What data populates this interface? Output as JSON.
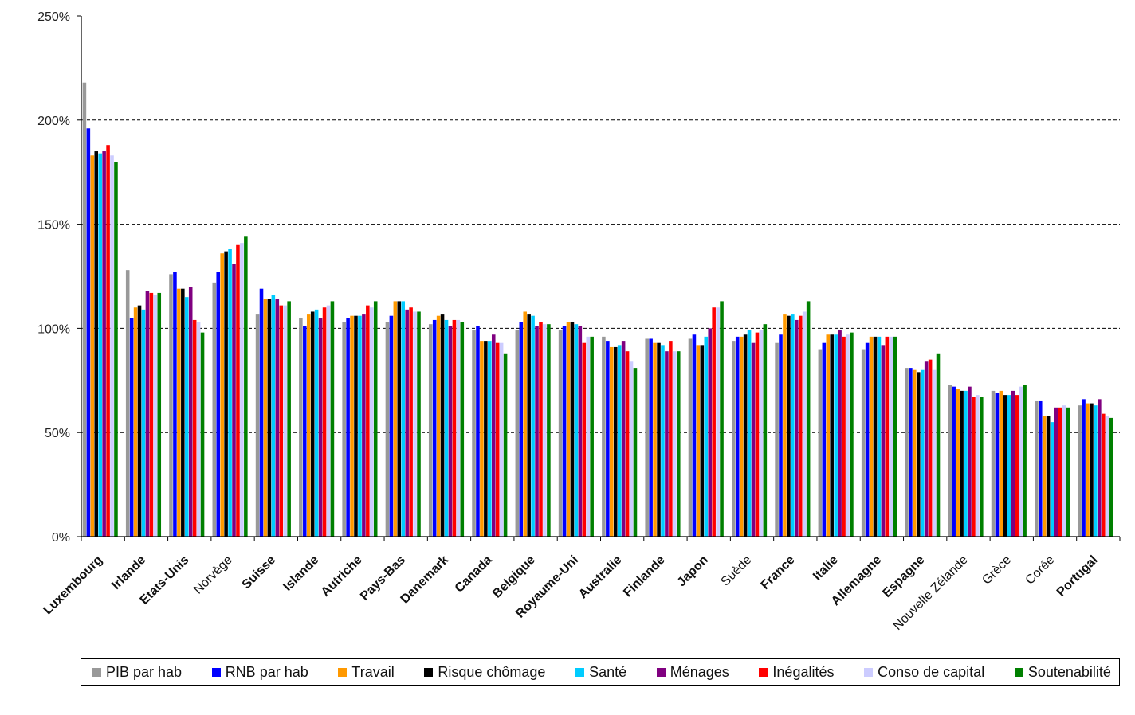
{
  "chart_data": {
    "type": "bar",
    "title": "",
    "xlabel": "",
    "ylabel": "",
    "ylim": [
      0,
      250
    ],
    "yticks": [
      0,
      50,
      100,
      150,
      200,
      250
    ],
    "ytick_labels": [
      "0%",
      "50%",
      "100%",
      "150%",
      "200%",
      "250%"
    ],
    "grid": "horizontal dashed at 100%, 150%, 200%",
    "legend_position": "bottom",
    "categories": [
      "Luxembourg",
      "Irlande",
      "Etats-Unis",
      "Norvège",
      "Suisse",
      "Islande",
      "Autriche",
      "Pays-Bas",
      "Danemark",
      "Canada",
      "Belgique",
      "Royaume-Uni",
      "Australie",
      "Finlande",
      "Japon",
      "Suède",
      "France",
      "Italie",
      "Allemagne",
      "Espagne",
      "Nouvelle Zélande",
      "Grèce",
      "Corée",
      "Portugal"
    ],
    "bold_categories": [
      "Luxembourg",
      "Irlande",
      "Etats-Unis",
      "Suisse",
      "Islande",
      "Autriche",
      "Pays-Bas",
      "Danemark",
      "Canada",
      "Belgique",
      "Royaume-Uni",
      "Australie",
      "Finlande",
      "Japon",
      "France",
      "Italie",
      "Allemagne",
      "Espagne",
      "Portugal"
    ],
    "series": [
      {
        "name": "PIB par hab",
        "color": "#999999",
        "values": [
          218,
          128,
          126,
          122,
          107,
          105,
          103,
          103,
          102,
          99,
          99,
          99,
          96,
          95,
          95,
          94,
          93,
          90,
          90,
          81,
          73,
          70,
          65,
          63
        ]
      },
      {
        "name": "RNB par hab",
        "color": "#0000ff",
        "values": [
          196,
          105,
          127,
          127,
          119,
          101,
          105,
          106,
          104,
          101,
          103,
          101,
          94,
          95,
          97,
          96,
          97,
          93,
          93,
          81,
          72,
          69,
          65,
          66
        ]
      },
      {
        "name": "Travail",
        "color": "#ff9900",
        "values": [
          183,
          110,
          119,
          136,
          114,
          107,
          106,
          113,
          106,
          94,
          108,
          103,
          91,
          93,
          92,
          96,
          107,
          97,
          96,
          80,
          71,
          70,
          58,
          64
        ]
      },
      {
        "name": "Risque chômage",
        "color": "#000000",
        "values": [
          185,
          111,
          119,
          137,
          114,
          108,
          106,
          113,
          107,
          94,
          107,
          103,
          91,
          93,
          92,
          97,
          106,
          97,
          96,
          79,
          70,
          68,
          58,
          64
        ]
      },
      {
        "name": "Santé",
        "color": "#00ccff",
        "values": [
          184,
          109,
          115,
          138,
          116,
          109,
          106,
          113,
          104,
          94,
          106,
          102,
          92,
          92,
          96,
          99,
          107,
          97,
          96,
          80,
          70,
          68,
          55,
          63
        ]
      },
      {
        "name": "Ménages",
        "color": "#800080",
        "values": [
          185,
          118,
          120,
          131,
          114,
          105,
          107,
          109,
          101,
          97,
          101,
          101,
          94,
          89,
          100,
          93,
          104,
          99,
          92,
          84,
          72,
          70,
          62,
          66
        ]
      },
      {
        "name": "Inégalités",
        "color": "#ff0000",
        "values": [
          188,
          117,
          104,
          140,
          111,
          110,
          111,
          110,
          104,
          93,
          103,
          93,
          89,
          94,
          110,
          98,
          106,
          96,
          96,
          85,
          67,
          68,
          62,
          59
        ]
      },
      {
        "name": "Conso de capital",
        "color": "#ccccff",
        "values": [
          183,
          116,
          103,
          141,
          111,
          111,
          110,
          108,
          104,
          93,
          102,
          96,
          84,
          89,
          110,
          99,
          108,
          97,
          96,
          80,
          68,
          72,
          63,
          58
        ]
      },
      {
        "name": "Soutenabilité",
        "color": "#008000",
        "values": [
          180,
          117,
          98,
          144,
          113,
          113,
          113,
          108,
          103,
          88,
          102,
          96,
          81,
          89,
          113,
          102,
          113,
          98,
          96,
          88,
          67,
          73,
          62,
          57
        ]
      }
    ]
  }
}
